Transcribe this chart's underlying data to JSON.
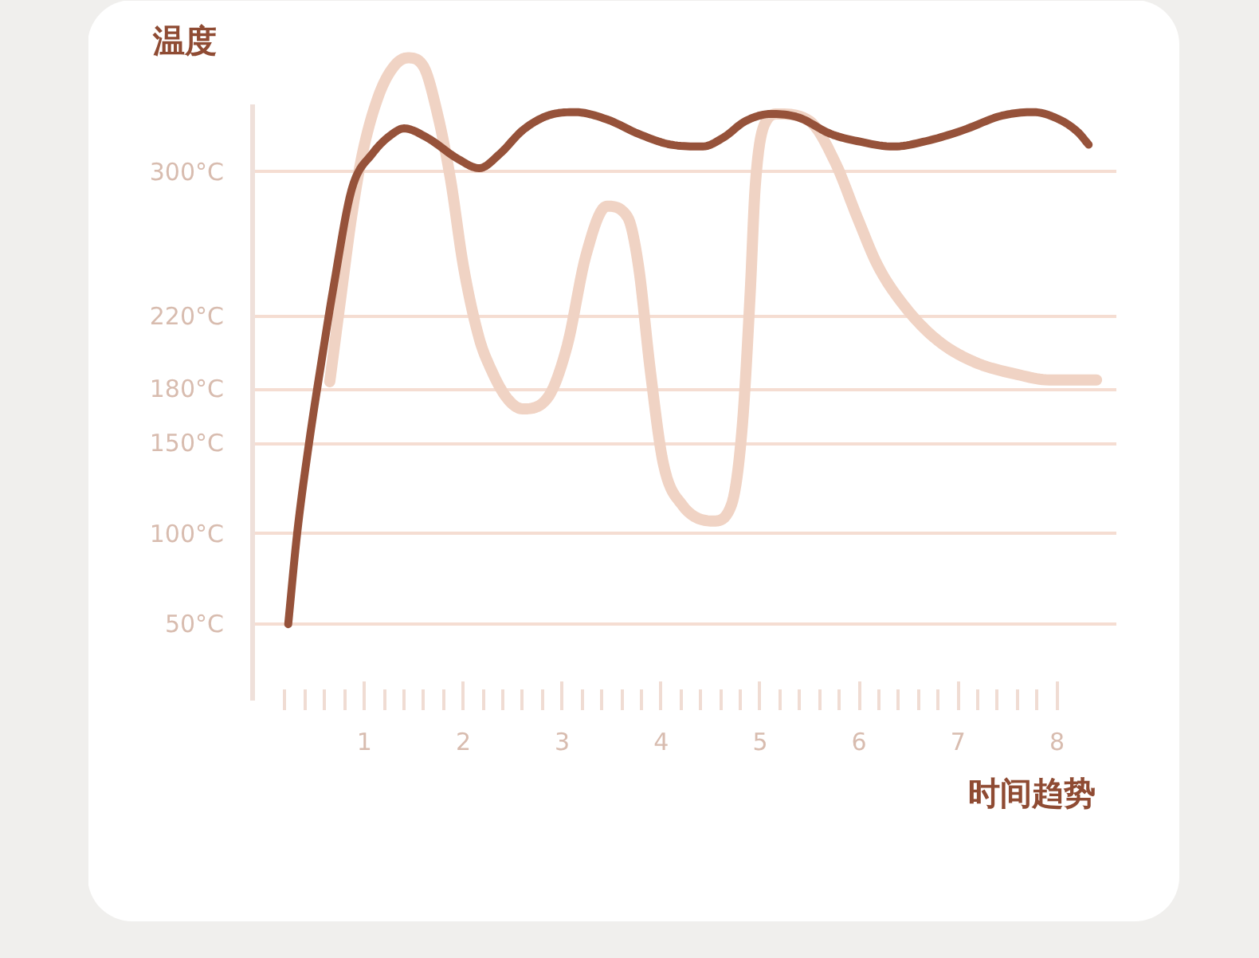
{
  "chart_data": {
    "type": "line",
    "xlabel": "时间趋势",
    "ylabel": "温度",
    "xlim": [
      -0.13,
      8.6
    ],
    "ylim": [
      2.5,
      372.5
    ],
    "xticks": [
      {
        "value": 0.2,
        "label": null
      },
      {
        "value": 0.4,
        "label": null
      },
      {
        "value": 0.6,
        "label": null
      },
      {
        "value": 0.8,
        "label": null
      },
      1,
      {
        "value": 1.2,
        "label": null
      },
      {
        "value": 1.4,
        "label": null
      },
      {
        "value": 1.6,
        "label": null
      },
      {
        "value": 1.8,
        "label": null
      },
      2,
      {
        "value": 2.2,
        "label": null
      },
      {
        "value": 2.4,
        "label": null
      },
      {
        "value": 2.6,
        "label": null
      },
      {
        "value": 2.8,
        "label": null
      },
      3,
      {
        "value": 3.2,
        "label": null
      },
      {
        "value": 3.4,
        "label": null
      },
      {
        "value": 3.6,
        "label": null
      },
      {
        "value": 3.8,
        "label": null
      },
      4,
      {
        "value": 4.2,
        "label": null
      },
      {
        "value": 4.4,
        "label": null
      },
      {
        "value": 4.6,
        "label": null
      },
      {
        "value": 4.8,
        "label": null
      },
      5,
      {
        "value": 5.2,
        "label": null
      },
      {
        "value": 5.4,
        "label": null
      },
      {
        "value": 5.6,
        "label": null
      },
      {
        "value": 5.8,
        "label": null
      },
      6,
      {
        "value": 6.2,
        "label": null
      },
      {
        "value": 6.4,
        "label": null
      },
      {
        "value": 6.6,
        "label": null
      },
      {
        "value": 6.8,
        "label": null
      },
      7,
      {
        "value": 7.2,
        "label": null
      },
      {
        "value": 7.4,
        "label": null
      },
      {
        "value": 7.6,
        "label": null
      },
      {
        "value": 7.8,
        "label": null
      },
      8
    ],
    "yticks": [
      {
        "value": 50,
        "label": "50°C"
      },
      {
        "value": 100,
        "label": "100°C"
      },
      {
        "value": 150,
        "label": "150°C"
      },
      {
        "value": 180,
        "label": "180°C"
      },
      {
        "value": 220,
        "label": "220°C"
      },
      {
        "value": 300,
        "label": "300°C"
      }
    ],
    "grid": "y",
    "series": [
      {
        "color": "#f0d3c4",
        "line_style": "solid",
        "x": [
          0.65,
          0.76,
          0.87,
          0.98,
          1.15,
          1.31,
          1.44,
          1.6,
          1.73,
          1.87,
          2.0,
          2.16,
          2.27,
          2.44,
          2.6,
          2.85,
          3.05,
          3.24,
          3.45,
          3.66,
          3.77,
          3.89,
          4.02,
          4.21,
          4.53,
          4.71,
          4.82,
          4.9,
          4.95,
          5.06,
          5.18,
          5.5,
          5.76,
          5.98,
          6.19,
          6.47,
          6.79,
          7.16,
          7.6,
          7.92,
          8.4
        ],
        "values": [
          184,
          230,
          275,
          310,
          343,
          359,
          363,
          358,
          334,
          296,
          248,
          208,
          192,
          175,
          169,
          175,
          204,
          254,
          281,
          275,
          248,
          190,
          139,
          116,
          107,
          116,
          160,
          234,
          292,
          328,
          332,
          328,
          305,
          275,
          248,
          225,
          207,
          195,
          188,
          185,
          185
        ]
      },
      {
        "color": "#96523a",
        "line_style": "solid",
        "x": [
          0.23,
          0.32,
          0.44,
          0.58,
          0.69,
          0.87,
          1.08,
          1.31,
          1.4,
          1.63,
          1.95,
          2.16,
          2.37,
          2.6,
          2.85,
          3.13,
          3.45,
          3.77,
          4.1,
          4.42,
          4.63,
          4.85,
          5.11,
          5.39,
          5.71,
          5.98,
          6.35,
          6.68,
          7.05,
          7.44,
          7.76,
          8.02,
          8.21,
          8.32
        ],
        "values": [
          50,
          100,
          150,
          200,
          237,
          290,
          310,
          322,
          324,
          319,
          307,
          302,
          310,
          323,
          331,
          333,
          329,
          321,
          315,
          314,
          319,
          328,
          332,
          330,
          321,
          317,
          314,
          317,
          323,
          331,
          333,
          329,
          322,
          315
        ]
      }
    ]
  }
}
